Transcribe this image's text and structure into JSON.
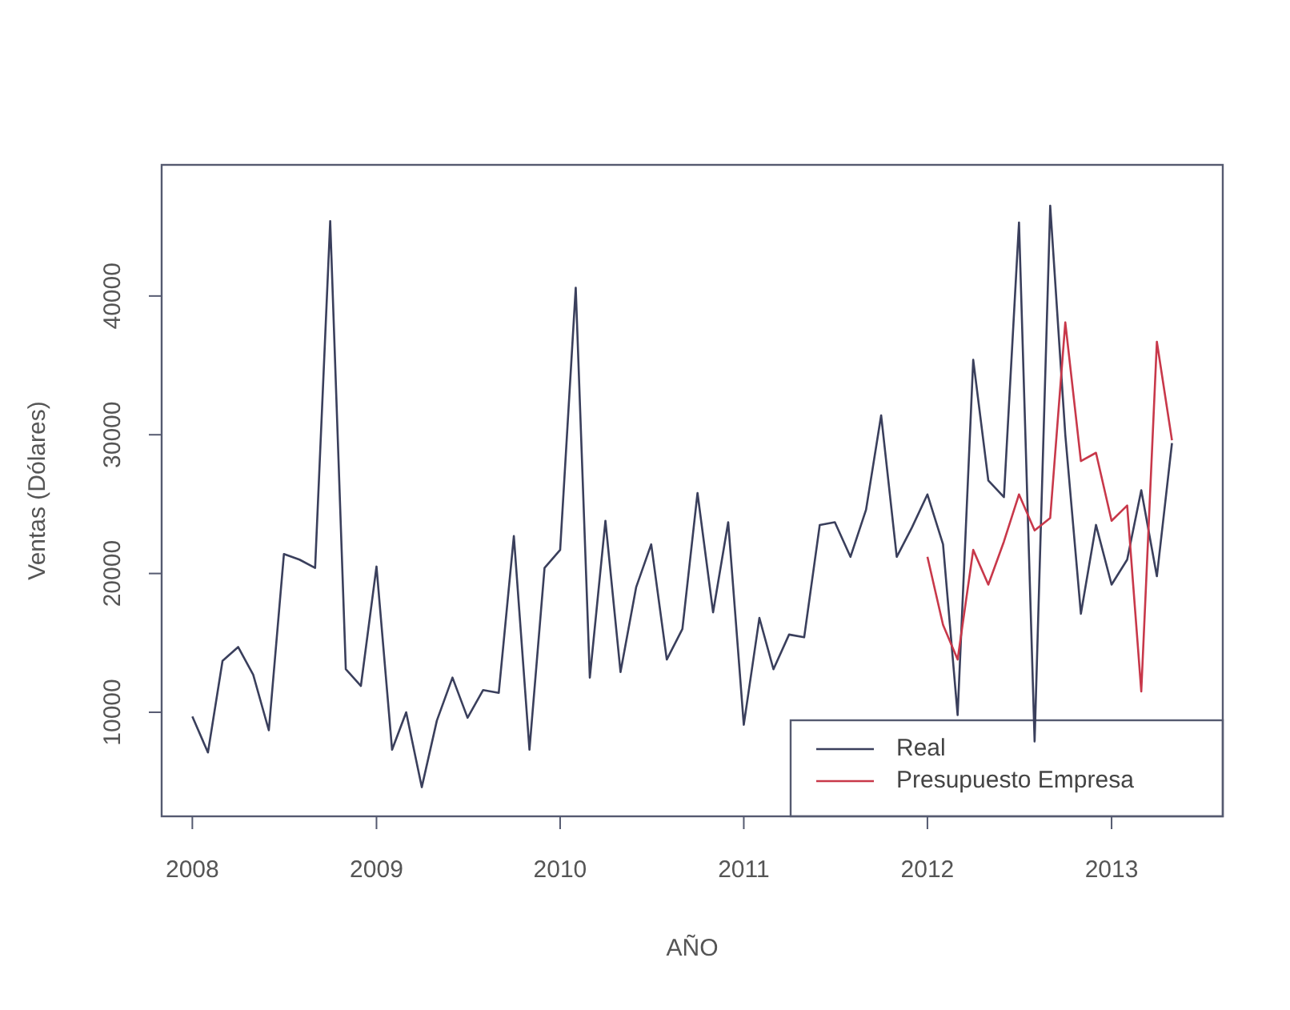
{
  "chart_data": {
    "type": "line",
    "xlabel": "AÑO",
    "ylabel": "Ventas (Dólares)",
    "xlim": [
      "2007-11-01",
      "2013-08-10"
    ],
    "xticks": [
      "2008",
      "2009",
      "2010",
      "2011",
      "2012",
      "2013"
    ],
    "ylim": [
      2500,
      49450
    ],
    "yticks": [
      10000,
      20000,
      30000,
      40000
    ],
    "legend": "bottom right",
    "grid": false,
    "line_style": "solid",
    "marker": "none",
    "series": [
      {
        "name": "Real",
        "color": "#3a3f5c",
        "x": [
          "2008-01",
          "2008-02",
          "2008-03",
          "2008-04",
          "2008-05",
          "2008-06",
          "2008-07",
          "2008-08",
          "2008-09",
          "2008-10",
          "2008-11",
          "2008-12",
          "2009-01",
          "2009-02",
          "2009-03",
          "2009-04",
          "2009-05",
          "2009-06",
          "2009-07",
          "2009-08",
          "2009-09",
          "2009-10",
          "2009-11",
          "2009-12",
          "2010-01",
          "2010-02",
          "2010-03",
          "2010-04",
          "2010-05",
          "2010-06",
          "2010-07",
          "2010-08",
          "2010-09",
          "2010-10",
          "2010-11",
          "2010-12",
          "2011-01",
          "2011-02",
          "2011-03",
          "2011-04",
          "2011-05",
          "2011-06",
          "2011-07",
          "2011-08",
          "2011-09",
          "2011-10",
          "2011-11",
          "2011-12",
          "2012-01",
          "2012-02",
          "2012-03",
          "2012-04",
          "2012-05",
          "2012-06",
          "2012-07",
          "2012-08",
          "2012-09",
          "2012-10",
          "2012-11",
          "2012-12",
          "2013-01",
          "2013-02",
          "2013-03",
          "2013-04",
          "2013-05"
        ],
        "values": [
          9700,
          7100,
          13700,
          14700,
          12700,
          8700,
          21400,
          21000,
          20400,
          45400,
          13100,
          11900,
          20500,
          7300,
          10000,
          4600,
          9400,
          12500,
          9600,
          11600,
          11400,
          22700,
          7300,
          20400,
          21700,
          40600,
          12500,
          23800,
          12900,
          19000,
          22100,
          13800,
          16000,
          25800,
          17200,
          23700,
          9100,
          16800,
          13100,
          15600,
          15400,
          23500,
          23700,
          21200,
          24600,
          31400,
          21200,
          23300,
          25700,
          22100,
          9800,
          35400,
          26700,
          25500,
          45300,
          7900,
          46500,
          30000,
          17100,
          23500,
          19200,
          21000,
          26000,
          19800,
          29400
        ]
      },
      {
        "name": "Presupuesto Empresa",
        "color": "#c8384a",
        "x": [
          "2012-01",
          "2012-02",
          "2012-03",
          "2012-04",
          "2012-05",
          "2012-06",
          "2012-07",
          "2012-08",
          "2012-09",
          "2012-10",
          "2012-11",
          "2012-12",
          "2013-01",
          "2013-02",
          "2013-03",
          "2013-04",
          "2013-05"
        ],
        "values": [
          21200,
          16300,
          13800,
          21700,
          19200,
          22300,
          25700,
          23100,
          24000,
          38100,
          28100,
          28700,
          23800,
          24900,
          11500,
          36700,
          29600
        ]
      }
    ]
  }
}
